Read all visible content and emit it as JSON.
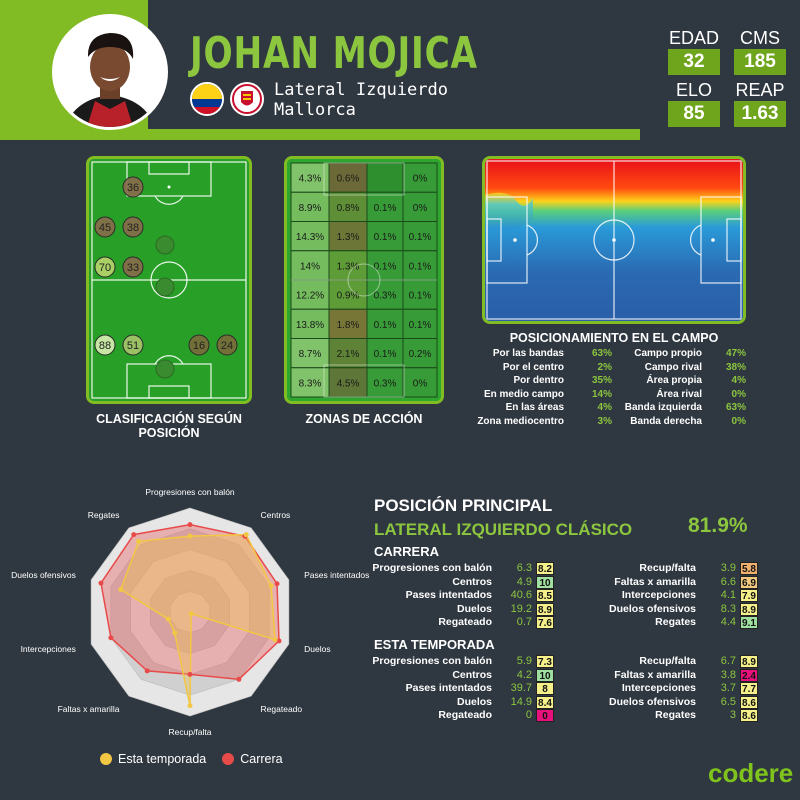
{
  "player": {
    "name": "JOHAN MOJICA",
    "position": "Lateral Izquierdo",
    "club": "Mallorca"
  },
  "stats": [
    {
      "label": "EDAD",
      "value": "32"
    },
    {
      "label": "CMS",
      "value": "185"
    },
    {
      "label": "ELO",
      "value": "85"
    },
    {
      "label": "REAP",
      "value": "1.63"
    }
  ],
  "captions": {
    "clasificacion": "CLASIFICACIÓN SEGÚN POSICIÓN",
    "zonas": "ZONAS DE ACCIÓN",
    "posicionamiento": "POSICIONAMIENTO EN EL CAMPO"
  },
  "position_bubbles": [
    {
      "v": "36",
      "c": "#8a6a4a"
    },
    {
      "v": "45",
      "c": "#8a6a4a"
    },
    {
      "v": "38",
      "c": "#8a6a4a"
    },
    {
      "v": "70",
      "c": "#b8d46a"
    },
    {
      "v": "33",
      "c": "#8a6a4a"
    },
    {
      "v": "88",
      "c": "#d8ecb0"
    },
    {
      "v": "51",
      "c": "#a9c46a"
    },
    {
      "v": "16",
      "c": "#7a6a3a"
    },
    {
      "v": "24",
      "c": "#7a6a3a"
    }
  ],
  "zones": [
    [
      "4.3%",
      "0.6%",
      "",
      "0%"
    ],
    [
      "8.9%",
      "0.8%",
      "0.1%",
      "0%"
    ],
    [
      "14.3%",
      "1.3%",
      "0.1%",
      "0.1%"
    ],
    [
      "14%",
      "1.3%",
      "0.1%",
      "0.1%"
    ],
    [
      "12.2%",
      "0.9%",
      "0.3%",
      "0.1%"
    ],
    [
      "13.8%",
      "1.8%",
      "0.1%",
      "0.1%"
    ],
    [
      "8.7%",
      "2.1%",
      "0.1%",
      "0.2%"
    ],
    [
      "8.3%",
      "4.5%",
      "0.3%",
      "0%"
    ]
  ],
  "positioning": {
    "left": [
      {
        "label": "Por las bandas",
        "value": "63%"
      },
      {
        "label": "Por el centro",
        "value": "2%"
      },
      {
        "label": "Por dentro",
        "value": "35%"
      },
      {
        "label": "En medio campo",
        "value": "14%"
      },
      {
        "label": "En las áreas",
        "value": "4%"
      },
      {
        "label": "Zona mediocentro",
        "value": "3%"
      }
    ],
    "right": [
      {
        "label": "Campo propio",
        "value": "47%"
      },
      {
        "label": "Campo rival",
        "value": "38%"
      },
      {
        "label": "Área propia",
        "value": "4%"
      },
      {
        "label": "Área rival",
        "value": "0%"
      },
      {
        "label": "Banda izquierda",
        "value": "63%"
      },
      {
        "label": "Banda derecha",
        "value": "0%"
      }
    ]
  },
  "radar": {
    "axes": [
      "Progresiones con balón",
      "Centros",
      "Pases intentados",
      "Duelos",
      "Regateado",
      "Recup/falta",
      "Faltas x amarilla",
      "Intercepciones",
      "Duelos ofensivos",
      "Regates"
    ],
    "legend": {
      "season": "Esta temporada",
      "career": "Carrera"
    },
    "colors": {
      "season": "#f2c744",
      "career": "#e84a4a"
    }
  },
  "principal": {
    "title": "POSICIÓN PRINCIPAL",
    "role": "LATERAL IZQUIERDO CLÁSICO",
    "pct": "81.9%"
  },
  "carrera": {
    "title": "CARRERA",
    "left": [
      {
        "label": "Progresiones con balón",
        "val": "6.3",
        "rating": "8.2",
        "color": "#f5f08a"
      },
      {
        "label": "Centros",
        "val": "4.9",
        "rating": "10",
        "color": "#9fe0a0"
      },
      {
        "label": "Pases intentados",
        "val": "40.6",
        "rating": "8.5",
        "color": "#f5f08a"
      },
      {
        "label": "Duelos",
        "val": "19.2",
        "rating": "8.9",
        "color": "#f5f08a"
      },
      {
        "label": "Regateado",
        "val": "0.7",
        "rating": "7.6",
        "color": "#f5f08a"
      }
    ],
    "right": [
      {
        "label": "Recup/falta",
        "val": "3.9",
        "rating": "5.8",
        "color": "#f0b070"
      },
      {
        "label": "Faltas x amarilla",
        "val": "6.6",
        "rating": "6.9",
        "color": "#f0c880"
      },
      {
        "label": "Intercepciones",
        "val": "4.1",
        "rating": "7.9",
        "color": "#f5f08a"
      },
      {
        "label": "Duelos ofensivos",
        "val": "8.3",
        "rating": "8.9",
        "color": "#f5f08a"
      },
      {
        "label": "Regates",
        "val": "4.4",
        "rating": "9.1",
        "color": "#9fe0a0"
      }
    ]
  },
  "temporada": {
    "title": "ESTA TEMPORADA",
    "left": [
      {
        "label": "Progresiones con balón",
        "val": "5.9",
        "rating": "7.3",
        "color": "#f5f08a"
      },
      {
        "label": "Centros",
        "val": "4.2",
        "rating": "10",
        "color": "#9fe0a0"
      },
      {
        "label": "Pases intentados",
        "val": "39.7",
        "rating": "8",
        "color": "#f5f08a"
      },
      {
        "label": "Duelos",
        "val": "14.9",
        "rating": "8.4",
        "color": "#f5f08a"
      },
      {
        "label": "Regateado",
        "val": "0",
        "rating": "0",
        "color": "#e8107a"
      }
    ],
    "right": [
      {
        "label": "Recup/falta",
        "val": "6.7",
        "rating": "8.9",
        "color": "#f5f08a"
      },
      {
        "label": "Faltas x amarilla",
        "val": "3.8",
        "rating": "2.4",
        "color": "#e8107a"
      },
      {
        "label": "Intercepciones",
        "val": "3.7",
        "rating": "7.7",
        "color": "#f5f08a"
      },
      {
        "label": "Duelos ofensivos",
        "val": "6.5",
        "rating": "8.6",
        "color": "#f5f08a"
      },
      {
        "label": "Regates",
        "val": "3",
        "rating": "8.6",
        "color": "#f5f08a"
      }
    ]
  },
  "brand": "codere"
}
